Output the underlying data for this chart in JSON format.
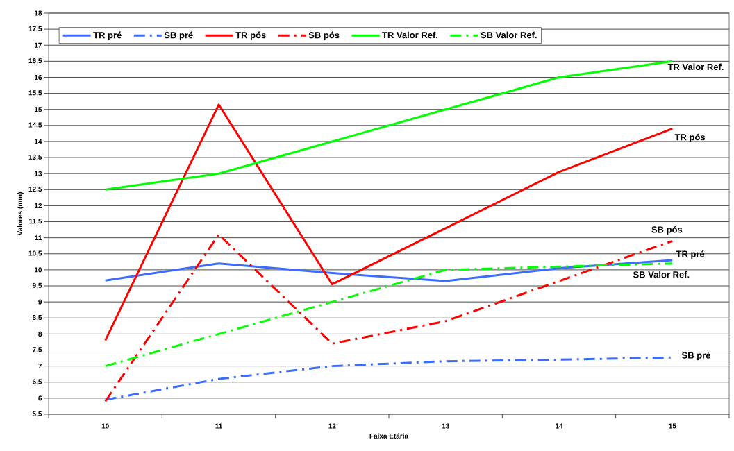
{
  "chart_data": {
    "type": "line",
    "xlabel": "Faixa Etária",
    "ylabel": "Valores (mm)",
    "categories": [
      "10",
      "11",
      "12",
      "13",
      "14",
      "15"
    ],
    "series": [
      {
        "name": "TR pré",
        "color": "#3c6cff",
        "line_style": "solid",
        "values": [
          9.67,
          10.2,
          9.9,
          9.65,
          10.05,
          10.3
        ]
      },
      {
        "name": "SB pré",
        "color": "#3c6cff",
        "line_style": "dashed",
        "values": [
          5.95,
          6.6,
          7.0,
          7.15,
          7.2,
          7.27
        ]
      },
      {
        "name": "TR pós",
        "color": "#ff0000",
        "line_style": "solid",
        "values": [
          7.8,
          15.15,
          9.55,
          11.3,
          13.05,
          14.4
        ]
      },
      {
        "name": "SB pós",
        "color": "#ff0000",
        "line_style": "dashed",
        "values": [
          5.9,
          11.1,
          7.7,
          8.4,
          9.65,
          10.9
        ]
      },
      {
        "name": "TR Valor Ref.",
        "color": "#00ff00",
        "line_style": "solid",
        "values": [
          12.5,
          13.0,
          14.0,
          15.0,
          16.0,
          16.5
        ]
      },
      {
        "name": "SB Valor Ref.",
        "color": "#00ff00",
        "line_style": "dashed",
        "values": [
          7.0,
          8.0,
          9.0,
          10.0,
          10.1,
          10.2
        ]
      }
    ],
    "ylim": [
      5.5,
      18
    ],
    "yticks": [
      {
        "value": 5.5,
        "label": "5,5"
      },
      6,
      {
        "value": 6.5,
        "label": "6,5"
      },
      7,
      {
        "value": 7.5,
        "label": "7,5"
      },
      8,
      {
        "value": 8.5,
        "label": "8,5"
      },
      9,
      {
        "value": 9.5,
        "label": "9,5"
      },
      10,
      {
        "value": 10.5,
        "label": "10,5"
      },
      11,
      {
        "value": 11.5,
        "label": "11,5"
      },
      12,
      {
        "value": 12.5,
        "label": "12,5"
      },
      13,
      {
        "value": 13.5,
        "label": "13,5"
      },
      14,
      {
        "value": 14.5,
        "label": "14,5"
      },
      15,
      {
        "value": 15.5,
        "label": "15,5"
      },
      16,
      {
        "value": 16.5,
        "label": "16,5"
      },
      17,
      {
        "value": 17.5,
        "label": "17,5"
      },
      18
    ],
    "grid": "y",
    "legend": "top",
    "marker": "none"
  }
}
